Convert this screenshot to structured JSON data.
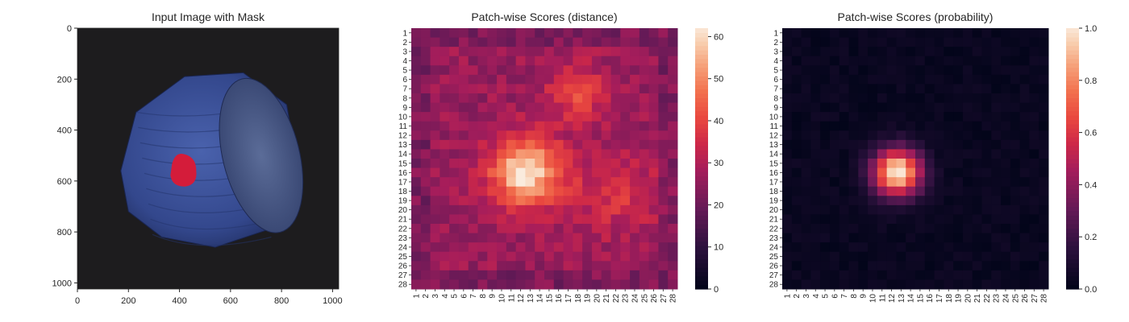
{
  "chart_data": [
    {
      "type": "image",
      "title": "Input Image with Mask",
      "xlim": [
        0,
        1024
      ],
      "ylim": [
        1024,
        0
      ],
      "x_ticks": [
        0,
        200,
        400,
        600,
        800,
        1000
      ],
      "y_ticks": [
        0,
        200,
        400,
        600,
        800,
        1000
      ],
      "background_color": "#1d1c1e",
      "object_color": "#3a4f96",
      "mask_color": "#d41c3a"
    },
    {
      "type": "heatmap",
      "title": "Patch-wise Scores (distance)",
      "x_categories": [
        "1",
        "2",
        "3",
        "4",
        "5",
        "6",
        "7",
        "8",
        "9",
        "10",
        "11",
        "12",
        "13",
        "14",
        "15",
        "16",
        "17",
        "18",
        "19",
        "20",
        "21",
        "22",
        "23",
        "24",
        "25",
        "26",
        "27",
        "28"
      ],
      "y_categories": [
        "1",
        "2",
        "3",
        "4",
        "5",
        "6",
        "7",
        "8",
        "9",
        "10",
        "11",
        "12",
        "13",
        "14",
        "15",
        "16",
        "17",
        "18",
        "19",
        "20",
        "21",
        "22",
        "23",
        "24",
        "25",
        "26",
        "27",
        "28"
      ],
      "colorbar": {
        "min": 0,
        "max": 62,
        "ticks": [
          0,
          10,
          20,
          30,
          40,
          50,
          60
        ],
        "colormap": "rocket"
      },
      "hotspots": [
        {
          "row": 16,
          "col": 12.5,
          "peak": 62,
          "sigma": 2.6
        },
        {
          "row": 7.5,
          "col": 18,
          "peak": 40,
          "sigma": 2.2
        },
        {
          "row": 18,
          "col": 22,
          "peak": 36,
          "sigma": 3.2
        }
      ],
      "base_level": 26
    },
    {
      "type": "heatmap",
      "title": "Patch-wise Scores (probability)",
      "x_categories": [
        "1",
        "2",
        "3",
        "4",
        "5",
        "6",
        "7",
        "8",
        "9",
        "10",
        "11",
        "12",
        "13",
        "14",
        "15",
        "16",
        "17",
        "18",
        "19",
        "20",
        "21",
        "22",
        "23",
        "24",
        "25",
        "26",
        "27",
        "28"
      ],
      "y_categories": [
        "1",
        "2",
        "3",
        "4",
        "5",
        "6",
        "7",
        "8",
        "9",
        "10",
        "11",
        "12",
        "13",
        "14",
        "15",
        "16",
        "17",
        "18",
        "19",
        "20",
        "21",
        "22",
        "23",
        "24",
        "25",
        "26",
        "27",
        "28"
      ],
      "colorbar": {
        "min": 0,
        "max": 1,
        "ticks": [
          0.0,
          0.2,
          0.4,
          0.6,
          0.8,
          1.0
        ],
        "colormap": "rocket"
      },
      "hotspots": [
        {
          "row": 16,
          "col": 12.6,
          "peak": 1.0,
          "sigma": 1.8
        }
      ],
      "base_level": 0.0
    }
  ]
}
